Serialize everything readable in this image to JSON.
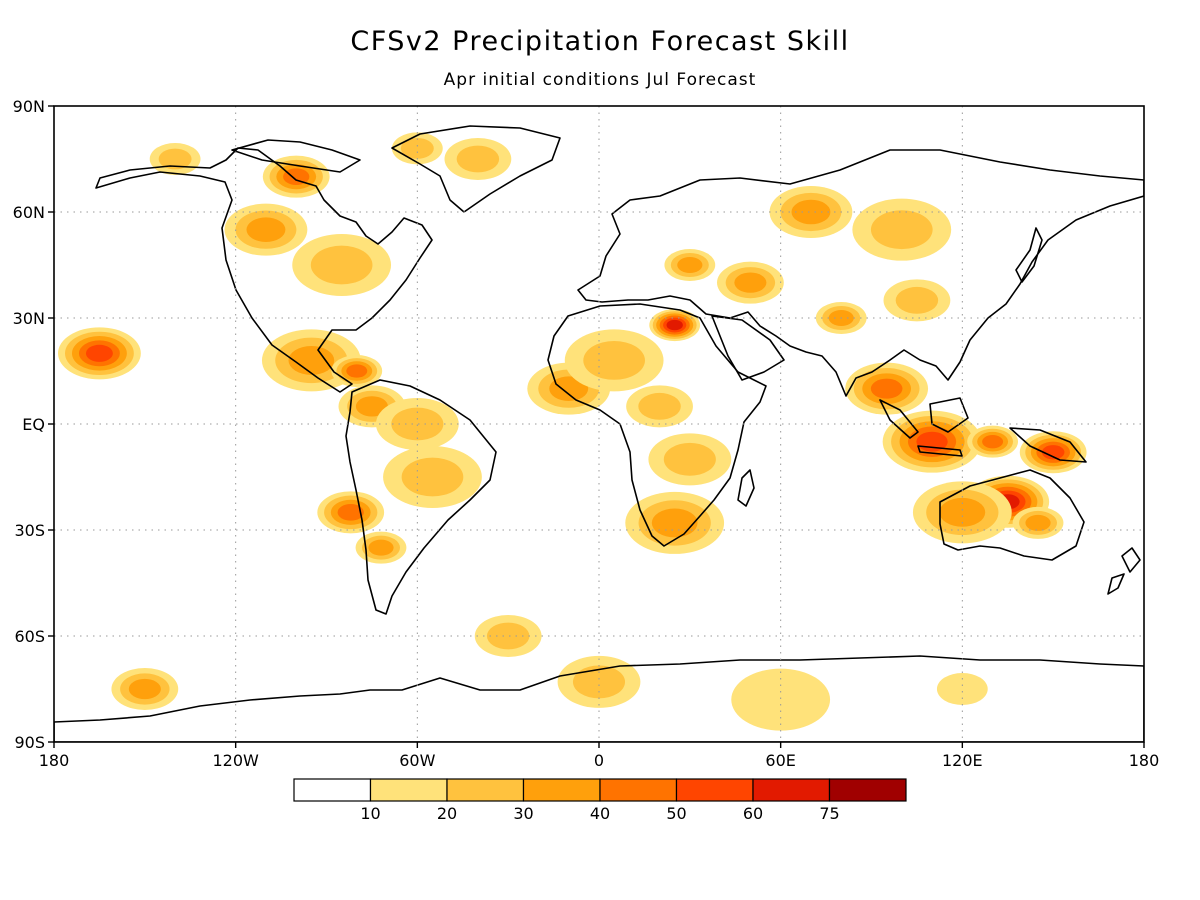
{
  "title": "CFSv2 Precipitation Forecast Skill",
  "subtitle": "Apr initial conditions   Jul Forecast",
  "axes": {
    "lat_ticks": [
      {
        "label": "90N",
        "value": 90
      },
      {
        "label": "60N",
        "value": 60
      },
      {
        "label": "30N",
        "value": 30
      },
      {
        "label": "EQ",
        "value": 0
      },
      {
        "label": "30S",
        "value": -30
      },
      {
        "label": "60S",
        "value": -60
      },
      {
        "label": "90S",
        "value": -90
      }
    ],
    "lon_ticks": [
      {
        "label": "180",
        "value": -180
      },
      {
        "label": "120W",
        "value": -120
      },
      {
        "label": "60W",
        "value": -60
      },
      {
        "label": "0",
        "value": 0
      },
      {
        "label": "60E",
        "value": 60
      },
      {
        "label": "120E",
        "value": 120
      },
      {
        "label": "180",
        "value": 180
      }
    ],
    "lon_range": [
      -180,
      180
    ],
    "lat_range": [
      -90,
      90
    ],
    "grid": "dotted"
  },
  "colorbar": {
    "levels": [
      "10",
      "20",
      "30",
      "40",
      "50",
      "60",
      "75"
    ],
    "colors": [
      "#ffffff",
      "#ffe27a",
      "#ffc23e",
      "#ffa00c",
      "#ff7300",
      "#ff4500",
      "#e21a00",
      "#a00000"
    ]
  },
  "skill_patches": [
    {
      "lon": -140,
      "lat": 75,
      "level": 2
    },
    {
      "lon": -100,
      "lat": 70,
      "level": 4
    },
    {
      "lon": -110,
      "lat": 55,
      "level": 3
    },
    {
      "lon": -85,
      "lat": 45,
      "level": 2
    },
    {
      "lon": -60,
      "lat": 78,
      "level": 2
    },
    {
      "lon": -40,
      "lat": 75,
      "level": 2
    },
    {
      "lon": -165,
      "lat": 20,
      "level": 5
    },
    {
      "lon": -95,
      "lat": 18,
      "level": 3
    },
    {
      "lon": -80,
      "lat": 15,
      "level": 4
    },
    {
      "lon": -75,
      "lat": 5,
      "level": 3
    },
    {
      "lon": -60,
      "lat": 0,
      "level": 2
    },
    {
      "lon": -55,
      "lat": -15,
      "level": 2
    },
    {
      "lon": -72,
      "lat": -35,
      "level": 3
    },
    {
      "lon": -82,
      "lat": -25,
      "level": 4
    },
    {
      "lon": -10,
      "lat": 10,
      "level": 3
    },
    {
      "lon": 5,
      "lat": 18,
      "level": 2
    },
    {
      "lon": 25,
      "lat": 28,
      "level": 6
    },
    {
      "lon": 20,
      "lat": 5,
      "level": 2
    },
    {
      "lon": 30,
      "lat": -10,
      "level": 2
    },
    {
      "lon": 25,
      "lat": -28,
      "level": 3
    },
    {
      "lon": 30,
      "lat": 45,
      "level": 3
    },
    {
      "lon": 50,
      "lat": 40,
      "level": 3
    },
    {
      "lon": 70,
      "lat": 60,
      "level": 3
    },
    {
      "lon": 100,
      "lat": 55,
      "level": 2
    },
    {
      "lon": 80,
      "lat": 30,
      "level": 3
    },
    {
      "lon": 105,
      "lat": 35,
      "level": 2
    },
    {
      "lon": 95,
      "lat": 10,
      "level": 4
    },
    {
      "lon": 110,
      "lat": -5,
      "level": 5
    },
    {
      "lon": 130,
      "lat": -5,
      "level": 4
    },
    {
      "lon": 150,
      "lat": -8,
      "level": 5
    },
    {
      "lon": 135,
      "lat": -22,
      "level": 6
    },
    {
      "lon": 120,
      "lat": -25,
      "level": 3
    },
    {
      "lon": 145,
      "lat": -28,
      "level": 3
    },
    {
      "lon": -150,
      "lat": -75,
      "level": 3
    },
    {
      "lon": 0,
      "lat": -73,
      "level": 2
    },
    {
      "lon": 60,
      "lat": -78,
      "level": 1
    },
    {
      "lon": 120,
      "lat": -75,
      "level": 1
    },
    {
      "lon": -30,
      "lat": -60,
      "level": 2
    }
  ]
}
